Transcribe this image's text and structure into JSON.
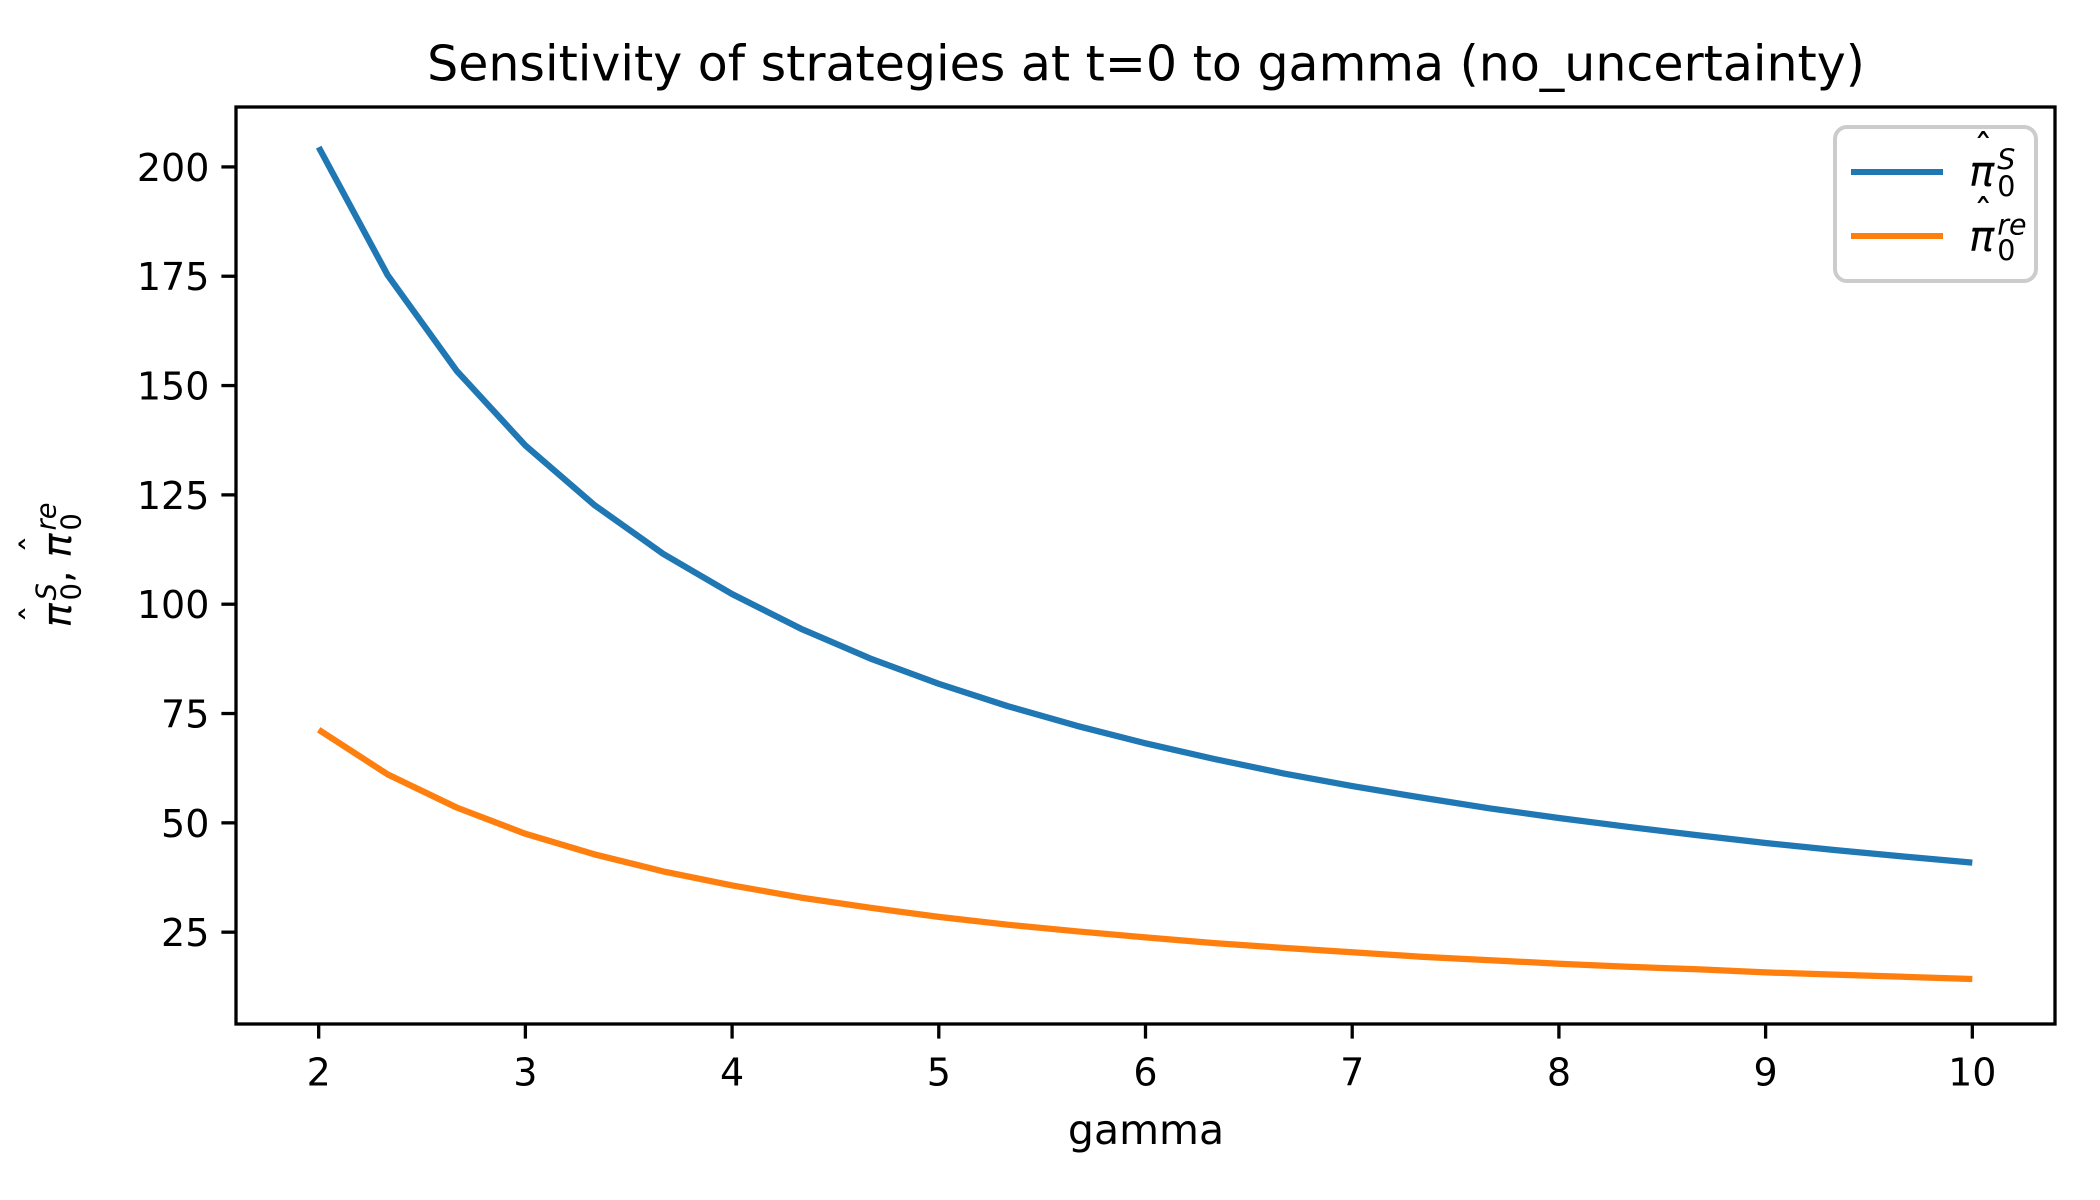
{
  "chart_data": {
    "type": "line",
    "title": "Sensitivity of strategies at t=0 to gamma (no_uncertainty)",
    "xlabel": "gamma",
    "ylabel_plain": "π̂_0^S,  π̂_0^re",
    "xlim": [
      1.6,
      10.4
    ],
    "ylim": [
      4.0,
      213.7
    ],
    "x_ticks": [
      2,
      3,
      4,
      5,
      6,
      7,
      8,
      9,
      10
    ],
    "y_ticks": [
      25,
      50,
      75,
      100,
      125,
      150,
      175,
      200
    ],
    "grid": false,
    "legend_position": "upper right",
    "frame_color": "#000000",
    "x": [
      2,
      2.333,
      2.667,
      3,
      3.333,
      3.667,
      4,
      4.333,
      4.667,
      5,
      5.333,
      5.667,
      6,
      6.333,
      6.667,
      7,
      7.333,
      7.667,
      8,
      8.333,
      8.667,
      9,
      9.333,
      9.667,
      10
    ],
    "series": [
      {
        "name": "pi-hat-0-S",
        "label_plain": "π̂_0^S",
        "color": "#1f77b4",
        "values": [
          204.5,
          175.3,
          153.4,
          136.3,
          122.7,
          111.5,
          102.3,
          94.4,
          87.6,
          81.8,
          76.7,
          72.2,
          68.2,
          64.6,
          61.3,
          58.4,
          55.8,
          53.3,
          51.1,
          49.1,
          47.2,
          45.4,
          43.8,
          42.3,
          40.9
        ]
      },
      {
        "name": "pi-hat-0-re",
        "label_plain": "π̂_0^re",
        "color": "#ff7f0e",
        "values": [
          71.3,
          61.1,
          53.5,
          47.5,
          42.8,
          38.9,
          35.7,
          32.9,
          30.6,
          28.5,
          26.7,
          25.2,
          23.8,
          22.5,
          21.4,
          20.4,
          19.4,
          18.6,
          17.8,
          17.1,
          16.5,
          15.8,
          15.3,
          14.8,
          14.3
        ]
      }
    ]
  },
  "ylabel_math": {
    "parts": [
      {
        "hat": "ˆ",
        "base": "π",
        "sup": "S",
        "sub": "0"
      },
      {
        "text": ",  "
      },
      {
        "hat": "ˆ",
        "base": "π",
        "sup": "re",
        "sub": "0"
      }
    ]
  },
  "legend": {
    "entries": [
      {
        "series_index": 0,
        "color": "#1f77b4",
        "math": {
          "hat": "ˆ",
          "base": "π",
          "sup": "S",
          "sub": "0"
        }
      },
      {
        "series_index": 1,
        "color": "#ff7f0e",
        "math": {
          "hat": "ˆ",
          "base": "π",
          "sup": "re",
          "sub": "0"
        }
      }
    ]
  }
}
